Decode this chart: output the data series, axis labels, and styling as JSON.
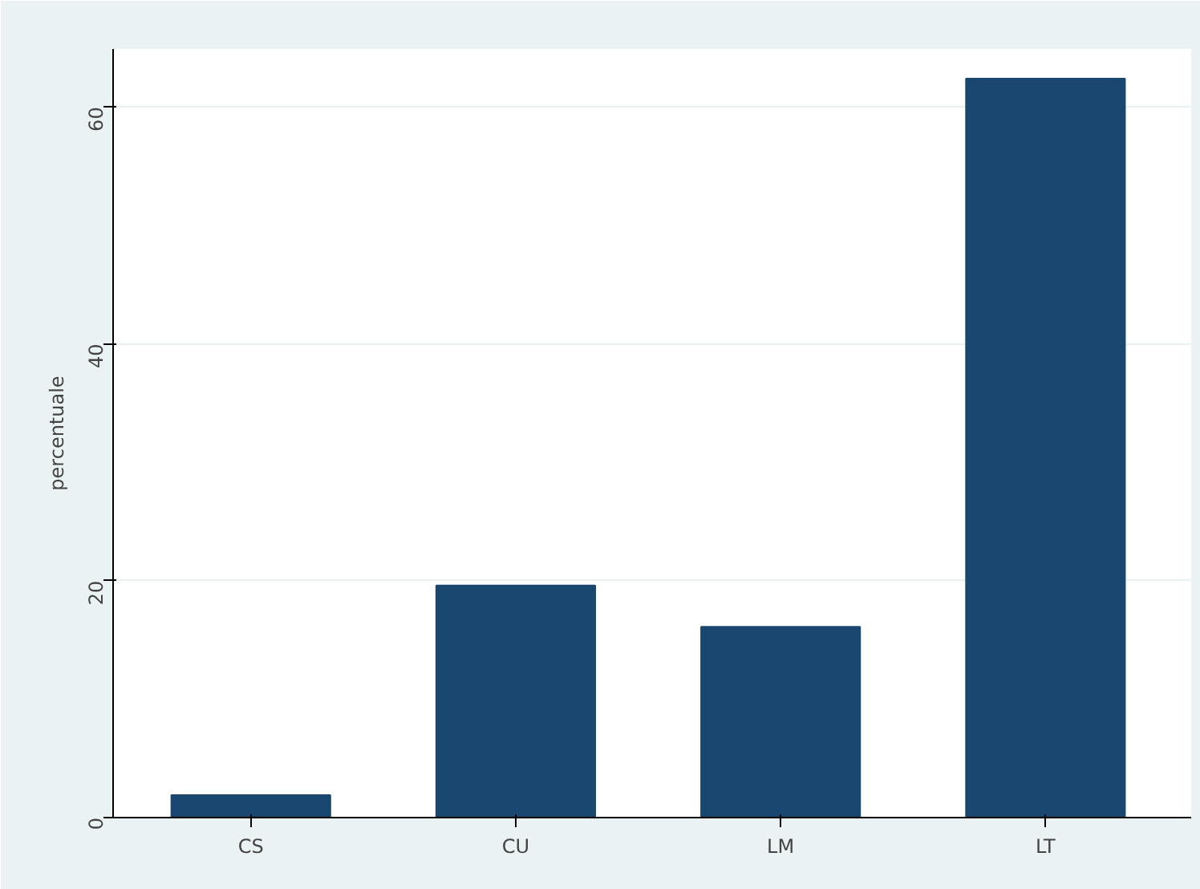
{
  "chart_data": {
    "type": "bar",
    "ylabel": "percentuale",
    "categories": [
      "CS",
      "CU",
      "LM",
      "LT"
    ],
    "values": [
      1.9,
      19.6,
      16.1,
      62.4
    ],
    "color": "#1a476f",
    "ylim": [
      0,
      64.9
    ],
    "yticks": [
      0,
      20,
      40,
      60
    ],
    "grid": "y"
  }
}
